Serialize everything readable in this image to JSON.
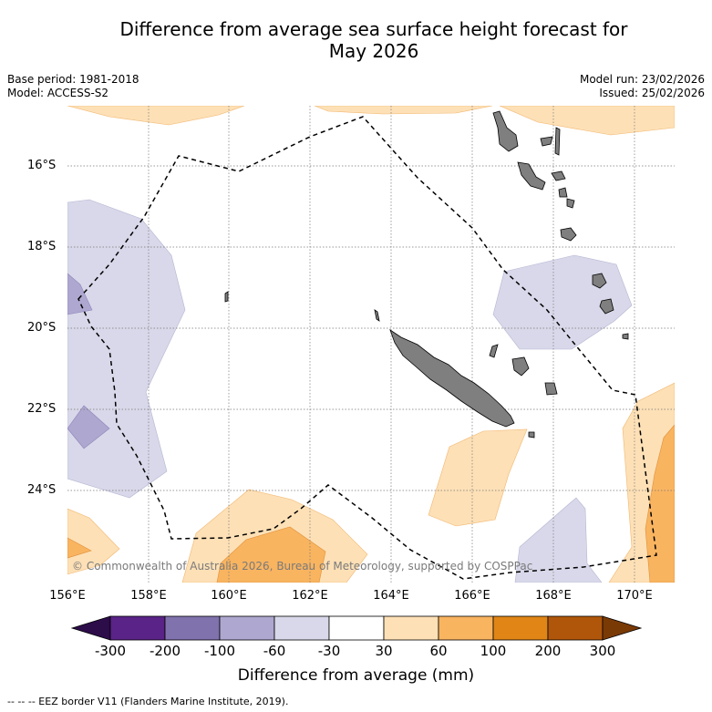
{
  "title_line1": "Difference from average sea surface height forecast for",
  "title_line2": "May 2026",
  "base_period": "Base period: 1981-2018",
  "model": "Model: ACCESS-S2",
  "model_run": "Model run: 23/02/2026",
  "issued": "Issued: 25/02/2026",
  "lat_labels": [
    "16°S",
    "18°S",
    "20°S",
    "22°S",
    "24°S"
  ],
  "lon_labels": [
    "156°E",
    "158°E",
    "160°E",
    "162°E",
    "164°E",
    "166°E",
    "168°E",
    "170°E"
  ],
  "copyright": "© Commonwealth of Australia 2026, Bureau of Meteorology, supported by COSPPac",
  "colorbar": {
    "ticks": [
      "-300",
      "-200",
      "-100",
      "-60",
      "-30",
      "30",
      "60",
      "100",
      "200",
      "300"
    ],
    "colors": [
      "#2d0c4a",
      "#5a2387",
      "#8072ad",
      "#aea7cf",
      "#d8d8ea",
      "#ffffff",
      "#fde0b6",
      "#f9b460",
      "#e08516",
      "#b0560a",
      "#7a3a05"
    ],
    "label": "Difference from average (mm)"
  },
  "legend_text": "-- -- -- EEZ border V11 (Flanders Marine Institute, 2019)."
}
